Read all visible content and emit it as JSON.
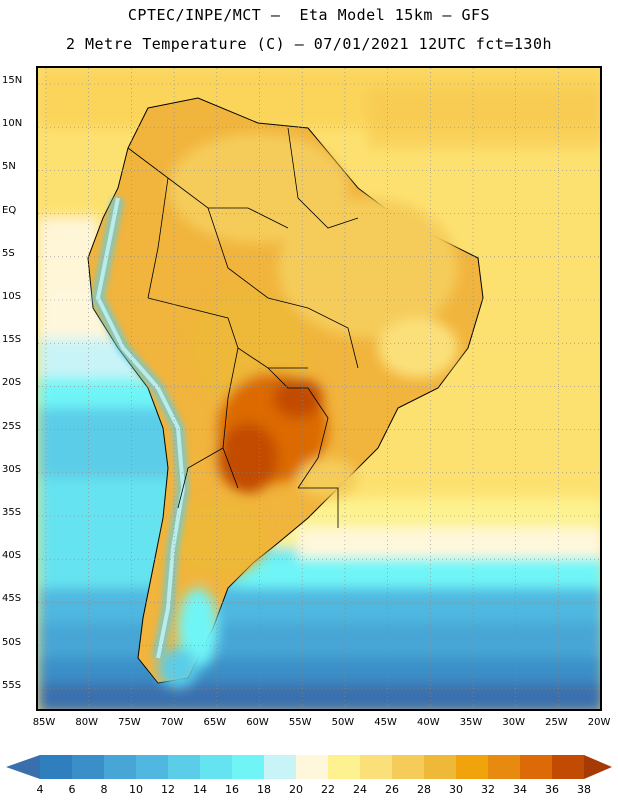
{
  "title": {
    "line1": "CPTEC/INPE/MCT –  Eta Model 15km – GFS",
    "line2": "2 Metre Temperature (C) – 07/01/2021 12UTC fct=130h"
  },
  "map": {
    "lat_labels": [
      "15N",
      "10N",
      "5N",
      "EQ",
      "5S",
      "10S",
      "15S",
      "20S",
      "25S",
      "30S",
      "35S",
      "40S",
      "45S",
      "50S",
      "55S"
    ],
    "lon_labels": [
      "85W",
      "80W",
      "75W",
      "70W",
      "65W",
      "60W",
      "55W",
      "50W",
      "45W",
      "40W",
      "35W",
      "30W",
      "25W",
      "20W"
    ],
    "lon_range": [
      -85,
      -20
    ],
    "lat_range": [
      -58,
      16
    ]
  },
  "colorbar": {
    "labels": [
      "4",
      "6",
      "8",
      "10",
      "12",
      "14",
      "16",
      "18",
      "20",
      "22",
      "24",
      "26",
      "28",
      "30",
      "32",
      "34",
      "36",
      "38"
    ],
    "colors": [
      "#3a6fae",
      "#2f7fbf",
      "#3b8fc8",
      "#47a6d6",
      "#50b8e0",
      "#5ccde8",
      "#66e3f0",
      "#70f5f7",
      "#c9f4f7",
      "#fff7dc",
      "#fdf28f",
      "#fbe07a",
      "#f5cc5a",
      "#eeb838",
      "#f1a30b",
      "#e98a10",
      "#dc6a06",
      "#c24b04",
      "#a53a05"
    ]
  }
}
